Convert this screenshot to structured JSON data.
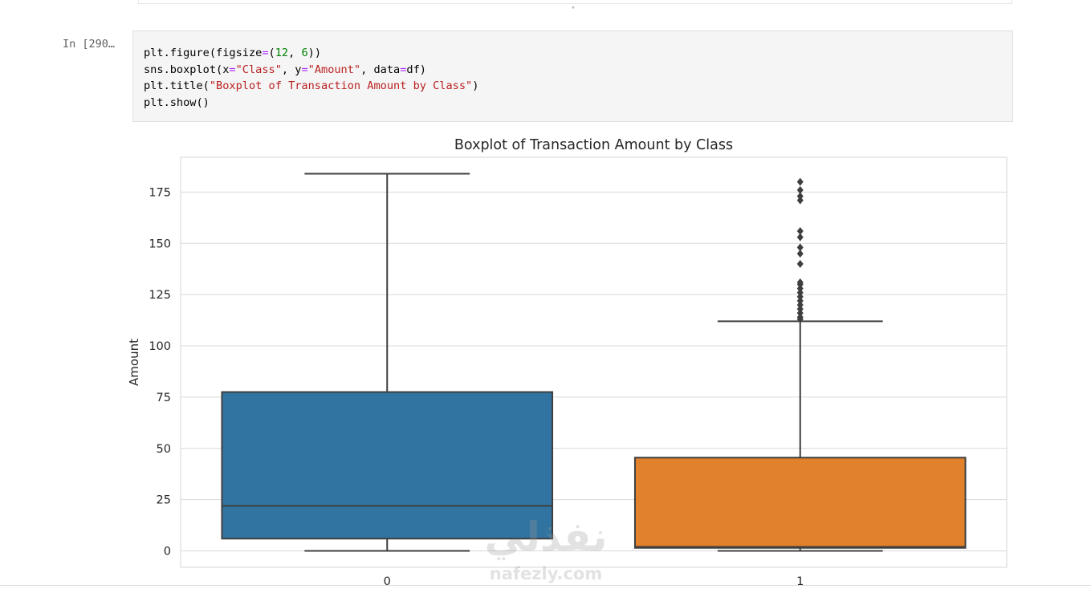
{
  "notebook": {
    "prompt_label": "In [290…",
    "code_lines": [
      [
        {
          "t": "plt"
        },
        {
          "t": ".figure(figsize"
        },
        {
          "t": "=",
          "c": "op"
        },
        {
          "t": "("
        },
        {
          "t": "12",
          "c": "num"
        },
        {
          "t": ", "
        },
        {
          "t": "6",
          "c": "num"
        },
        {
          "t": "))"
        }
      ],
      [
        {
          "t": "sns"
        },
        {
          "t": ".boxplot(x"
        },
        {
          "t": "=",
          "c": "op"
        },
        {
          "t": "\"Class\"",
          "c": "str"
        },
        {
          "t": ", y"
        },
        {
          "t": "=",
          "c": "op"
        },
        {
          "t": "\"Amount\"",
          "c": "str"
        },
        {
          "t": ", data"
        },
        {
          "t": "=",
          "c": "op"
        },
        {
          "t": "df)"
        }
      ],
      [
        {
          "t": "plt"
        },
        {
          "t": ".title("
        },
        {
          "t": "\"Boxplot of Transaction Amount by Class\"",
          "c": "str"
        },
        {
          "t": ")"
        }
      ],
      [
        {
          "t": "plt"
        },
        {
          "t": ".show()"
        }
      ]
    ]
  },
  "colors": {
    "class0": "#3274a1",
    "class1": "#e1812c",
    "edge": "#3f3f3f",
    "grid": "#d9d9d9"
  },
  "watermark": {
    "arabic": "نفذلي",
    "latin": "nafezly.com"
  },
  "chart_data": {
    "type": "box",
    "title": "Boxplot of Transaction Amount by Class",
    "xlabel": "",
    "ylabel": "Amount",
    "categories": [
      "0",
      "1"
    ],
    "ylim": [
      -8,
      192
    ],
    "yticks": [
      0,
      25,
      50,
      75,
      100,
      125,
      150,
      175
    ],
    "grid": true,
    "boxes": [
      {
        "category": "0",
        "whisker_low": 0,
        "q1": 6,
        "median": 22,
        "q3": 77.5,
        "whisker_high": 184,
        "outliers": []
      },
      {
        "category": "1",
        "whisker_low": 0,
        "q1": 1.5,
        "median": 2,
        "q3": 45.5,
        "whisker_high": 112,
        "outliers": [
          113,
          114,
          116,
          118,
          120,
          122,
          124,
          126,
          128,
          130,
          131,
          140,
          145,
          148,
          153,
          156,
          171,
          173,
          176,
          180
        ]
      }
    ]
  }
}
